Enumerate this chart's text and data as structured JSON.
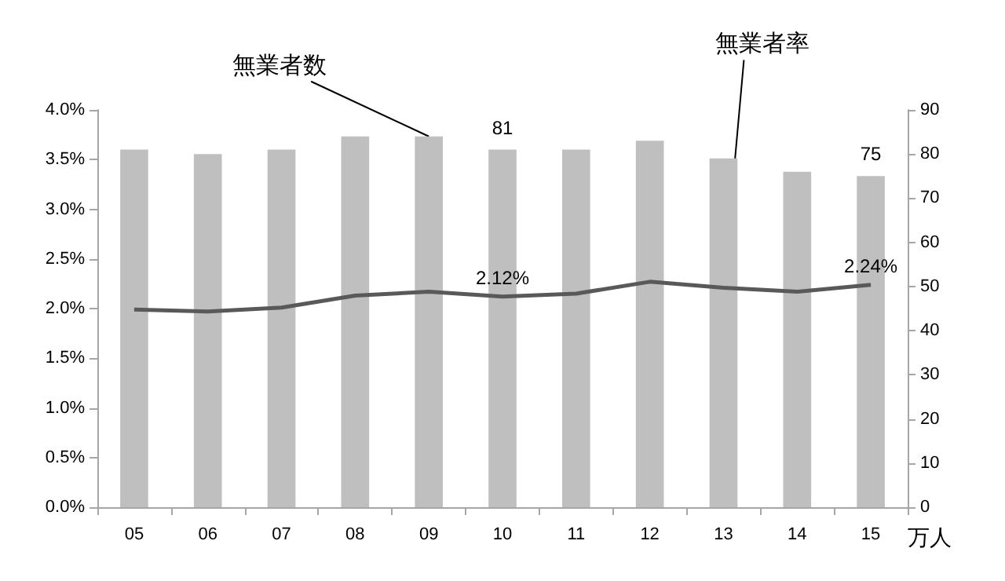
{
  "chart_data": {
    "type": "bar",
    "categories": [
      "05",
      "06",
      "07",
      "08",
      "09",
      "10",
      "11",
      "12",
      "13",
      "14",
      "15"
    ],
    "series": [
      {
        "name": "無業者数",
        "axis": "y2",
        "color": "#bfbfbf",
        "values": [
          81,
          80,
          81,
          84,
          84,
          81,
          81,
          83,
          79,
          76,
          75
        ],
        "value_labels": [
          null,
          null,
          null,
          null,
          null,
          "81",
          null,
          null,
          null,
          null,
          "75"
        ]
      },
      {
        "type": "line",
        "name": "無業者率",
        "color": "#595959",
        "values": [
          1.99,
          1.97,
          2.01,
          2.13,
          2.17,
          2.12,
          2.15,
          2.27,
          2.21,
          2.17,
          2.24
        ],
        "value_labels": [
          null,
          null,
          null,
          null,
          null,
          "2.12%",
          null,
          null,
          null,
          null,
          "2.24%"
        ]
      }
    ],
    "ylim": [
      0,
      4
    ],
    "yticks": [
      {
        "value": 0,
        "label": "0.0%"
      },
      {
        "value": 0.5,
        "label": "0.5%"
      },
      {
        "value": 1,
        "label": "1.0%"
      },
      {
        "value": 1.5,
        "label": "1.5%"
      },
      {
        "value": 2,
        "label": "2.0%"
      },
      {
        "value": 2.5,
        "label": "2.5%"
      },
      {
        "value": 3,
        "label": "3.0%"
      },
      {
        "value": 3.5,
        "label": "3.5%"
      },
      {
        "value": 4,
        "label": "4.0%"
      }
    ],
    "y2lim": [
      0,
      90
    ],
    "y2ticks": [
      0,
      10,
      20,
      30,
      40,
      50,
      60,
      70,
      80,
      90
    ],
    "y2label": "万人",
    "grid": false,
    "legend": false,
    "marker": "none",
    "line_style": "solid"
  }
}
